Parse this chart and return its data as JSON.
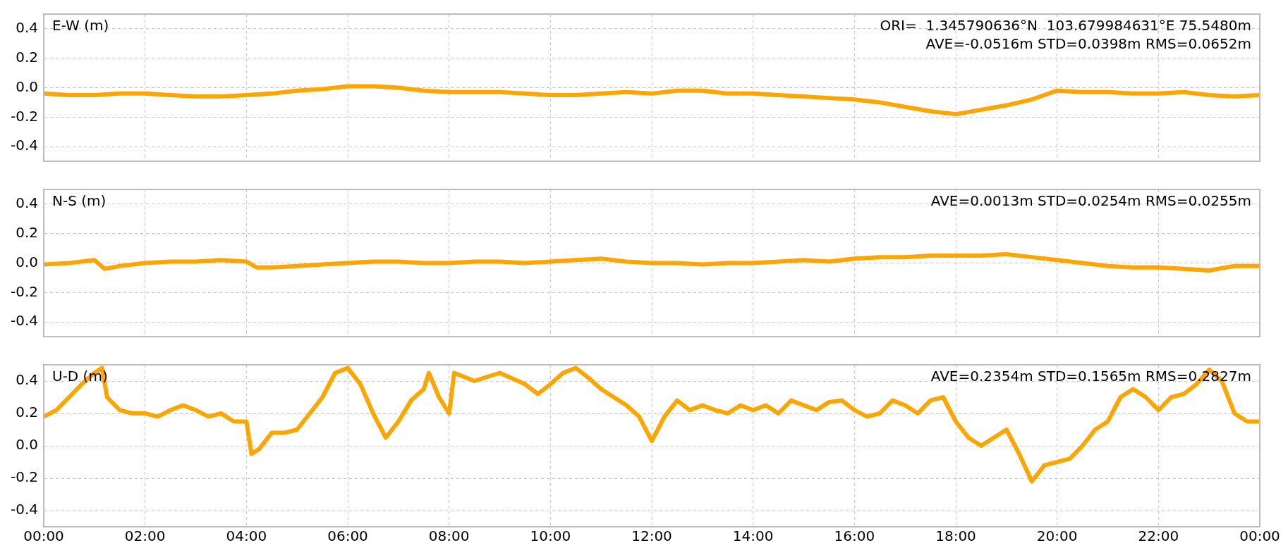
{
  "chart_data": [
    {
      "type": "line",
      "ylabel": "E-W (m)",
      "annotations": [
        "ORI=  1.345790636°N  103.679984631°E 75.5480m",
        "AVE=-0.0516m STD=0.0398m RMS=0.0652m"
      ],
      "x": [
        0,
        0.5,
        1,
        1.5,
        2,
        2.5,
        3,
        3.5,
        4,
        4.5,
        5,
        5.5,
        6,
        6.5,
        7,
        7.5,
        8,
        8.5,
        9,
        9.5,
        10,
        10.5,
        11,
        11.5,
        12,
        12.5,
        13,
        13.5,
        14,
        14.5,
        15,
        15.5,
        16,
        16.5,
        17,
        17.5,
        18,
        18.5,
        19,
        19.5,
        20,
        20.5,
        21,
        21.5,
        22,
        22.5,
        23,
        23.5,
        24
      ],
      "series": [
        {
          "color": "#ffa500",
          "values": [
            -0.04,
            -0.05,
            -0.05,
            -0.04,
            -0.04,
            -0.05,
            -0.06,
            -0.06,
            -0.05,
            -0.04,
            -0.02,
            -0.01,
            0.01,
            0.01,
            0.0,
            -0.02,
            -0.03,
            -0.03,
            -0.03,
            -0.04,
            -0.05,
            -0.05,
            -0.04,
            -0.03,
            -0.04,
            -0.02,
            -0.02,
            -0.04,
            -0.04,
            -0.05,
            -0.06,
            -0.07,
            -0.08,
            -0.1,
            -0.13,
            -0.16,
            -0.18,
            -0.15,
            -0.12,
            -0.08,
            -0.02,
            -0.03,
            -0.03,
            -0.04,
            -0.04,
            -0.03,
            -0.05,
            -0.06,
            -0.05
          ]
        }
      ],
      "xlim": [
        0,
        24
      ],
      "xticks": [
        {
          "value": 0,
          "label": null
        },
        {
          "value": 2,
          "label": null
        },
        {
          "value": 4,
          "label": null
        },
        {
          "value": 6,
          "label": null
        },
        {
          "value": 8,
          "label": null
        },
        {
          "value": 10,
          "label": null
        },
        {
          "value": 12,
          "label": null
        },
        {
          "value": 14,
          "label": null
        },
        {
          "value": 16,
          "label": null
        },
        {
          "value": 18,
          "label": null
        },
        {
          "value": 20,
          "label": null
        },
        {
          "value": 22,
          "label": null
        },
        {
          "value": 24,
          "label": null
        }
      ],
      "ylim": [
        -0.5,
        0.5
      ],
      "yticks": [
        {
          "value": -0.4,
          "label": "-0.4"
        },
        {
          "value": -0.2,
          "label": "-0.2"
        },
        {
          "value": 0,
          "label": "0.0"
        },
        {
          "value": 0.2,
          "label": "0.2"
        },
        {
          "value": 0.4,
          "label": "0.4"
        }
      ],
      "grid": true,
      "legend": false,
      "marker": "none",
      "tick_labels": "y"
    },
    {
      "type": "line",
      "ylabel": "N-S (m)",
      "annotations": [
        "AVE=0.0013m STD=0.0254m RMS=0.0255m"
      ],
      "x": [
        0,
        0.5,
        1,
        1.2,
        1.5,
        2,
        2.5,
        3,
        3.5,
        4,
        4.2,
        4.5,
        5,
        5.5,
        6,
        6.5,
        7,
        7.5,
        8,
        8.5,
        9,
        9.5,
        10,
        10.5,
        11,
        11.5,
        12,
        12.5,
        13,
        13.5,
        14,
        14.5,
        15,
        15.5,
        16,
        16.5,
        17,
        17.5,
        18,
        18.5,
        19,
        19.5,
        20,
        20.5,
        21,
        21.5,
        22,
        22.5,
        23,
        23.5,
        24
      ],
      "series": [
        {
          "color": "#ffa500",
          "values": [
            -0.01,
            0.0,
            0.02,
            -0.04,
            -0.02,
            0.0,
            0.01,
            0.01,
            0.02,
            0.01,
            -0.03,
            -0.03,
            -0.02,
            -0.01,
            0.0,
            0.01,
            0.01,
            0.0,
            0.0,
            0.01,
            0.01,
            0.0,
            0.01,
            0.02,
            0.03,
            0.01,
            0.0,
            0.0,
            -0.01,
            0.0,
            0.0,
            0.01,
            0.02,
            0.01,
            0.03,
            0.04,
            0.04,
            0.05,
            0.05,
            0.05,
            0.06,
            0.04,
            0.02,
            0.0,
            -0.02,
            -0.03,
            -0.03,
            -0.04,
            -0.05,
            -0.02,
            -0.02
          ]
        }
      ],
      "xlim": [
        0,
        24
      ],
      "xticks": [
        {
          "value": 0,
          "label": null
        },
        {
          "value": 2,
          "label": null
        },
        {
          "value": 4,
          "label": null
        },
        {
          "value": 6,
          "label": null
        },
        {
          "value": 8,
          "label": null
        },
        {
          "value": 10,
          "label": null
        },
        {
          "value": 12,
          "label": null
        },
        {
          "value": 14,
          "label": null
        },
        {
          "value": 16,
          "label": null
        },
        {
          "value": 18,
          "label": null
        },
        {
          "value": 20,
          "label": null
        },
        {
          "value": 22,
          "label": null
        },
        {
          "value": 24,
          "label": null
        }
      ],
      "ylim": [
        -0.5,
        0.5
      ],
      "yticks": [
        {
          "value": -0.4,
          "label": "-0.4"
        },
        {
          "value": -0.2,
          "label": "-0.2"
        },
        {
          "value": 0,
          "label": "0.0"
        },
        {
          "value": 0.2,
          "label": "0.2"
        },
        {
          "value": 0.4,
          "label": "0.4"
        }
      ],
      "grid": true,
      "legend": false,
      "marker": "none",
      "tick_labels": "y"
    },
    {
      "type": "line",
      "ylabel": "U-D (m)",
      "annotations": [
        "AVE=0.2354m STD=0.1565m RMS=0.2827m"
      ],
      "x": [
        0,
        0.25,
        0.5,
        0.75,
        1,
        1.15,
        1.25,
        1.5,
        1.75,
        2,
        2.25,
        2.5,
        2.75,
        3,
        3.25,
        3.5,
        3.75,
        4,
        4.1,
        4.25,
        4.5,
        4.75,
        5,
        5.25,
        5.5,
        5.75,
        6,
        6.25,
        6.5,
        6.75,
        7,
        7.25,
        7.5,
        7.6,
        7.8,
        8,
        8.1,
        8.5,
        9,
        9.5,
        9.75,
        10,
        10.25,
        10.5,
        10.75,
        11,
        11.25,
        11.5,
        11.75,
        12,
        12.25,
        12.5,
        12.75,
        13,
        13.25,
        13.5,
        13.75,
        14,
        14.25,
        14.5,
        14.75,
        15,
        15.25,
        15.5,
        15.75,
        16,
        16.25,
        16.5,
        16.75,
        17,
        17.25,
        17.5,
        17.75,
        18,
        18.25,
        18.5,
        18.75,
        19,
        19.25,
        19.5,
        19.75,
        20,
        20.25,
        20.5,
        20.75,
        21,
        21.25,
        21.5,
        21.75,
        22,
        22.25,
        22.5,
        22.75,
        23,
        23.25,
        23.5,
        23.75,
        24
      ],
      "series": [
        {
          "color": "#ffa500",
          "values": [
            0.18,
            0.22,
            0.3,
            0.38,
            0.45,
            0.48,
            0.3,
            0.22,
            0.2,
            0.2,
            0.18,
            0.22,
            0.25,
            0.22,
            0.18,
            0.2,
            0.15,
            0.15,
            -0.05,
            -0.02,
            0.08,
            0.08,
            0.1,
            0.2,
            0.3,
            0.45,
            0.48,
            0.38,
            0.2,
            0.05,
            0.15,
            0.28,
            0.35,
            0.45,
            0.3,
            0.2,
            0.45,
            0.4,
            0.45,
            0.38,
            0.32,
            0.38,
            0.45,
            0.48,
            0.42,
            0.35,
            0.3,
            0.25,
            0.18,
            0.03,
            0.18,
            0.28,
            0.22,
            0.25,
            0.22,
            0.2,
            0.25,
            0.22,
            0.25,
            0.2,
            0.28,
            0.25,
            0.22,
            0.27,
            0.28,
            0.22,
            0.18,
            0.2,
            0.28,
            0.25,
            0.2,
            0.28,
            0.3,
            0.15,
            0.05,
            0.0,
            0.05,
            0.1,
            -0.05,
            -0.22,
            -0.12,
            -0.1,
            -0.08,
            0.0,
            0.1,
            0.15,
            0.3,
            0.35,
            0.3,
            0.22,
            0.3,
            0.32,
            0.38,
            0.47,
            0.4,
            0.2,
            0.15,
            0.15
          ]
        }
      ],
      "xlim": [
        0,
        24
      ],
      "xticks": [
        {
          "value": 0,
          "label": "00:00"
        },
        {
          "value": 2,
          "label": "02:00"
        },
        {
          "value": 4,
          "label": "04:00"
        },
        {
          "value": 6,
          "label": "06:00"
        },
        {
          "value": 8,
          "label": "08:00"
        },
        {
          "value": 10,
          "label": "10:00"
        },
        {
          "value": 12,
          "label": "12:00"
        },
        {
          "value": 14,
          "label": "14:00"
        },
        {
          "value": 16,
          "label": "16:00"
        },
        {
          "value": 18,
          "label": "18:00"
        },
        {
          "value": 20,
          "label": "20:00"
        },
        {
          "value": 22,
          "label": "22:00"
        },
        {
          "value": 24,
          "label": "00:00"
        }
      ],
      "ylim": [
        -0.5,
        0.5
      ],
      "yticks": [
        {
          "value": -0.4,
          "label": "-0.4"
        },
        {
          "value": -0.2,
          "label": "-0.2"
        },
        {
          "value": 0,
          "label": "0.0"
        },
        {
          "value": 0.2,
          "label": "0.2"
        },
        {
          "value": 0.4,
          "label": "0.4"
        }
      ],
      "grid": true,
      "legend": false,
      "marker": "none"
    }
  ]
}
